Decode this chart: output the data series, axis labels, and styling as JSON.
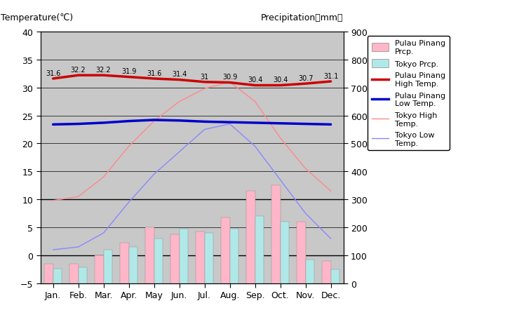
{
  "months": [
    "Jan.",
    "Feb.",
    "Mar.",
    "Apr.",
    "May",
    "Jun.",
    "Jul.",
    "Aug.",
    "Sep.",
    "Oct.",
    "Nov.",
    "Dec."
  ],
  "pulau_pinang_high": [
    31.6,
    32.2,
    32.2,
    31.9,
    31.6,
    31.4,
    31.0,
    30.9,
    30.4,
    30.4,
    30.7,
    31.1
  ],
  "pulau_pinang_low": [
    23.4,
    23.5,
    23.7,
    24.0,
    24.2,
    24.1,
    23.9,
    23.8,
    23.7,
    23.6,
    23.5,
    23.4
  ],
  "tokyo_high": [
    9.8,
    10.5,
    14.0,
    19.5,
    24.0,
    27.5,
    29.8,
    31.0,
    27.5,
    21.0,
    15.5,
    11.5
  ],
  "tokyo_low": [
    1.0,
    1.5,
    4.0,
    9.5,
    14.5,
    18.5,
    22.5,
    23.5,
    19.5,
    13.5,
    7.5,
    3.0
  ],
  "pulau_pinang_prcp_mm": [
    70,
    70,
    100,
    145,
    200,
    175,
    185,
    235,
    330,
    350,
    220,
    80
  ],
  "tokyo_prcp_mm": [
    52,
    56,
    120,
    130,
    160,
    195,
    180,
    195,
    240,
    220,
    85,
    50
  ],
  "pulau_pinang_high_labels": [
    "31.6",
    "32.2",
    "32.2",
    "31.9",
    "31.6",
    "31.4",
    "31",
    "30.9",
    "30.4",
    "30.4",
    "30.7",
    "31.1"
  ],
  "plot_bg_color": "#c8c8c8",
  "fig_bg_color": "#ffffff",
  "pulau_pinang_high_color": "#cc0000",
  "pulau_pinang_low_color": "#0000cc",
  "tokyo_high_color": "#ff8888",
  "tokyo_low_color": "#8888ff",
  "pulau_pinang_prcp_color": "#ffb6c8",
  "tokyo_prcp_color": "#b0e8e8",
  "title_left": "Temperature(℃)",
  "title_right": "Precipitation（mm）",
  "ylim_temp": [
    -5,
    40
  ],
  "ylim_prcp": [
    0,
    900
  ],
  "yticks_temp": [
    -5,
    0,
    5,
    10,
    15,
    20,
    25,
    30,
    35,
    40
  ],
  "yticks_prcp": [
    0,
    100,
    200,
    300,
    400,
    500,
    600,
    700,
    800,
    900
  ]
}
